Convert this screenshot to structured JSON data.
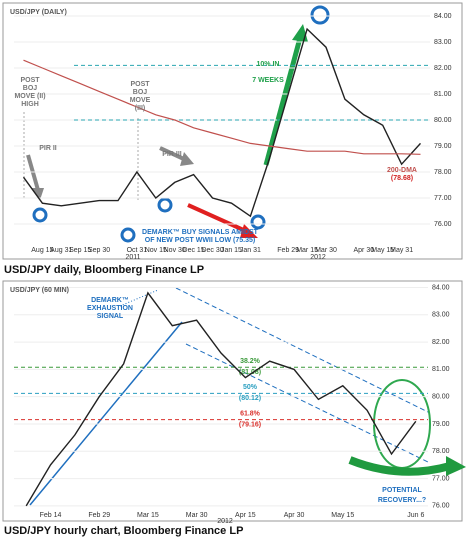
{
  "chart_data": [
    {
      "type": "line",
      "title": "USD/JPY (DAILY)",
      "source": "USD/JPY daily, Bloomberg Finance LP",
      "categories": [
        null,
        "Aug 15",
        "Aug 31",
        "Sep 15",
        "Sep 30",
        null,
        "Oct 31",
        "Nov 15",
        "Nov 30",
        "Dec 15",
        "Dec 30",
        "Jan 15",
        "Jan 31",
        null,
        "Feb 29",
        "Mar 15",
        "Mar 30",
        null,
        "Apr 30",
        "May 15",
        "May 31",
        null
      ],
      "years": [
        "2011",
        "2012"
      ],
      "series": [
        {
          "color": "#222222",
          "values": [
            77.8,
            76.8,
            76.7,
            76.8,
            76.9,
            76.9,
            78.0,
            77.0,
            77.6,
            77.9,
            77.0,
            76.8,
            76.3,
            78.5,
            81.0,
            83.5,
            82.8,
            80.8,
            80.2,
            79.8,
            78.3,
            79.1
          ]
        },
        {
          "name": "200-DMA",
          "color": "#c0504d",
          "values": [
            82.3,
            82.0,
            81.7,
            81.4,
            81.1,
            80.8,
            80.5,
            80.2,
            80.0,
            79.7,
            79.5,
            79.3,
            79.1,
            79.0,
            78.9,
            78.8,
            78.8,
            78.8,
            78.7,
            78.7,
            78.7,
            78.68
          ]
        }
      ],
      "ylim": [
        75.23,
        84.46
      ],
      "yticks": [
        {
          "value": 76,
          "label": "76.00"
        },
        {
          "value": 77,
          "label": "77.00"
        },
        {
          "value": 78,
          "label": "78.00"
        },
        {
          "value": 79,
          "label": "79.00"
        },
        {
          "value": 80,
          "label": "80.00"
        },
        {
          "value": 81,
          "label": "81.00"
        },
        {
          "value": 82,
          "label": "82.00"
        },
        {
          "value": 83,
          "label": "83.00"
        },
        {
          "value": 84,
          "label": "84.00"
        }
      ],
      "hlines": [
        {
          "value": 80,
          "color": "#2aa6b0"
        },
        {
          "value": 82.1,
          "color": "#2aa6b0"
        }
      ],
      "annotations": [
        "POST",
        "BOJ",
        "MOVE (II)",
        "HIGH",
        "PIR II",
        "POST",
        "BOJ",
        "MOVE",
        "(III)",
        "PIR III",
        "10% IN",
        "7 WEEKS",
        "(78.68)",
        "DEMARK™ BUY SIGNALS AMIDST",
        "OF NEW POST WWII LOW (75.35)"
      ]
    },
    {
      "type": "line",
      "title": "USD/JPY (60 MIN)",
      "source": "USD/JPY hourly chart, Bloomberg Finance LP",
      "categories": [
        null,
        "Feb 14",
        null,
        "Feb 29",
        null,
        "Mar 15",
        null,
        "Mar 30",
        null,
        "Apr 15",
        null,
        "Apr 30",
        null,
        "May 15",
        null,
        null,
        "Jun 6"
      ],
      "years": [
        "2012"
      ],
      "series": [
        {
          "color": "#222222",
          "values": [
            76.0,
            77.5,
            78.6,
            80.0,
            81.2,
            83.8,
            82.6,
            82.8,
            81.6,
            80.7,
            81.3,
            81.0,
            79.9,
            80.4,
            79.5,
            77.9,
            79.1
          ]
        }
      ],
      "ylim": [
        75.85,
        84.2
      ],
      "yticks": [
        {
          "value": 76,
          "label": "76.00"
        },
        {
          "value": 77,
          "label": "77.00"
        },
        {
          "value": 78,
          "label": "78.00"
        },
        {
          "value": 79,
          "label": "79.00"
        },
        {
          "value": 80,
          "label": "80.00"
        },
        {
          "value": 81,
          "label": "81.00"
        },
        {
          "value": 82,
          "label": "82.00"
        },
        {
          "value": 83,
          "label": "83.00"
        },
        {
          "value": 84,
          "label": "84.00"
        }
      ],
      "hlines": [
        {
          "name": "38.2%",
          "value": 81.08,
          "label": "(81.08)",
          "color": "#3a9a3a"
        },
        {
          "name": "50%",
          "value": 80.12,
          "label": "(80.12)",
          "color": "#2a9fc0"
        },
        {
          "name": "61.8%",
          "value": 79.16,
          "label": "(79.16)",
          "color": "#d9302c"
        }
      ],
      "annotations": [
        "DEMARK™",
        "EXHAUSTION",
        "SIGNAL",
        "POTENTIAL",
        "RECOVERY...?"
      ]
    }
  ]
}
